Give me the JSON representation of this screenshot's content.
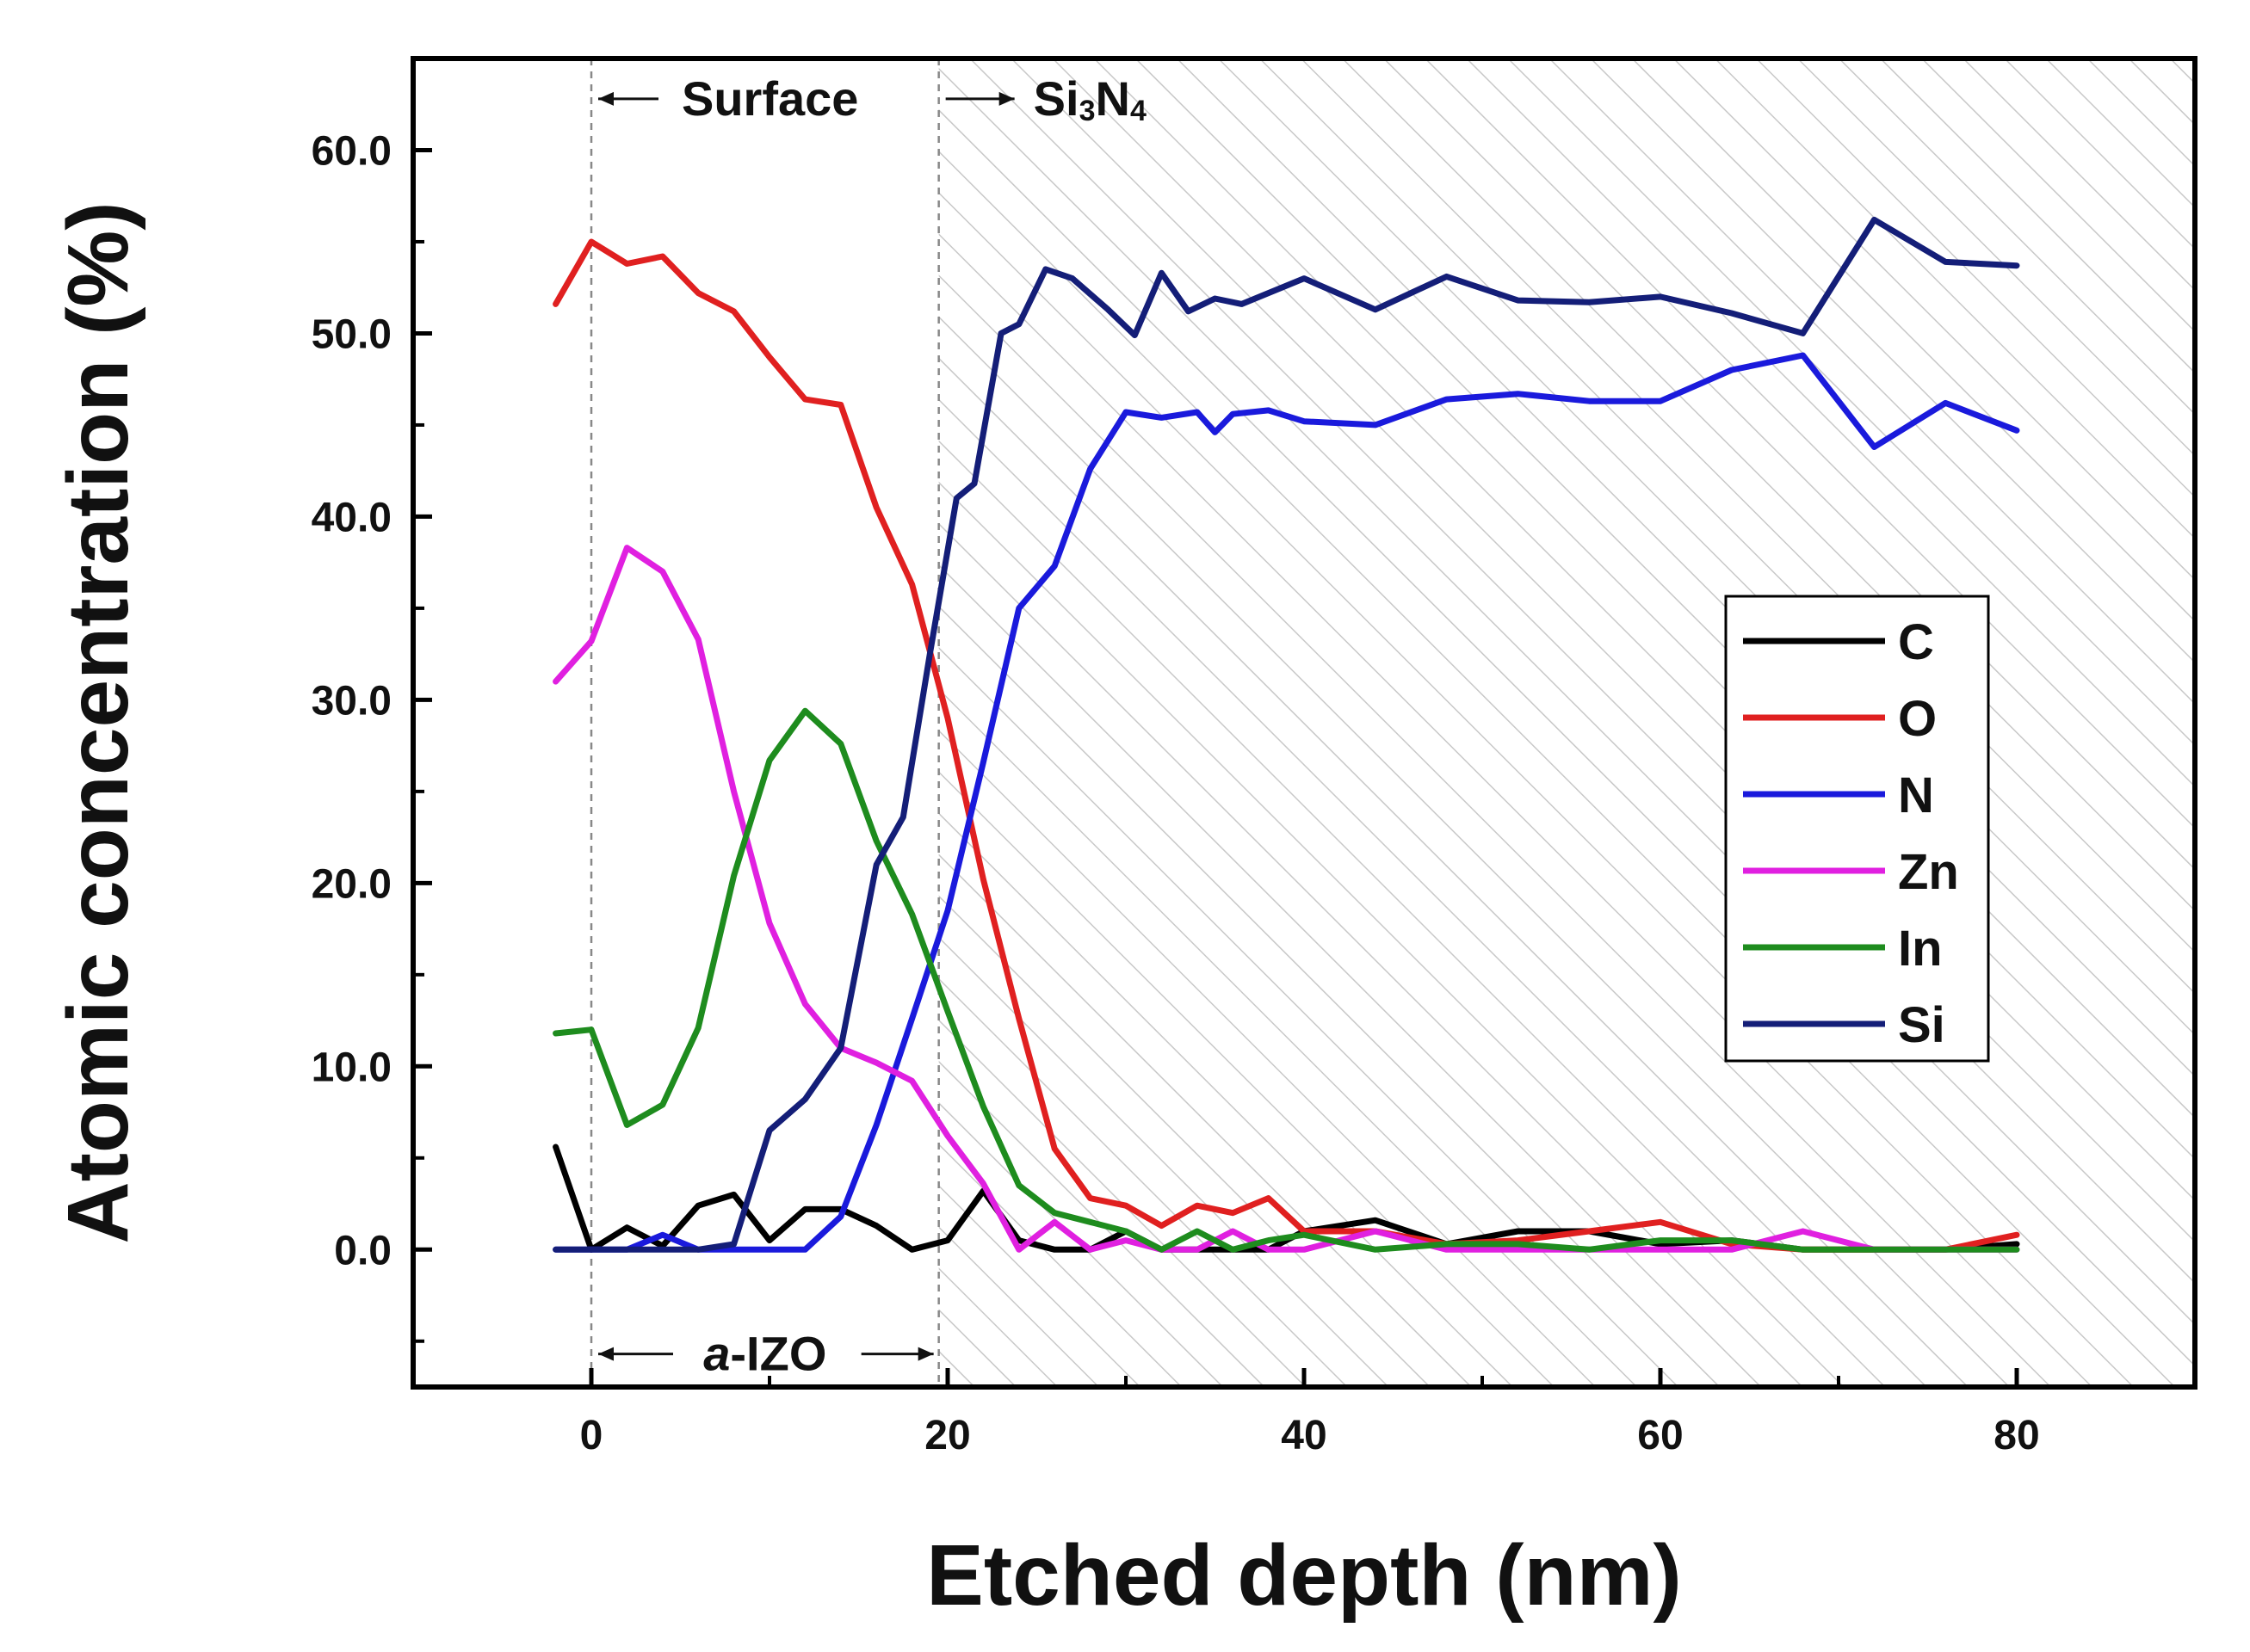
{
  "chart_data": {
    "type": "line",
    "title": "",
    "xlabel": "Etched depth (nm)",
    "ylabel": "Atomic concentration (%)",
    "xlim": [
      -10,
      90
    ],
    "ylim": [
      -7.5,
      65
    ],
    "xticks": [
      0,
      20,
      40,
      60,
      80
    ],
    "xtick_labels": [
      "0",
      "20",
      "40",
      "60",
      "80"
    ],
    "yticks": [
      0,
      10,
      20,
      30,
      40,
      50,
      60
    ],
    "ytick_labels": [
      "0.0",
      "10.0",
      "20.0",
      "30.0",
      "40.0",
      "50.0",
      "60.0"
    ],
    "grid": false,
    "legend_position": "center-right",
    "annotations": {
      "surface": "Surface",
      "si3n4_base": "Si",
      "si3n4_sub1": "3",
      "si3n4_mid": "N",
      "si3n4_sub2": "4",
      "aizo_italic": "a",
      "aizo_rest": "-IZO",
      "boundary_x": [
        0,
        19.5
      ],
      "hatched_region_start": 19.5
    },
    "series": [
      {
        "name": "C",
        "color": "#000000",
        "x": [
          -2,
          0,
          2,
          4,
          6,
          8,
          10,
          12,
          14,
          16,
          18,
          20,
          22,
          24,
          26,
          28,
          30,
          32,
          34,
          36,
          38,
          40,
          44,
          48,
          52,
          56,
          60,
          64,
          68,
          72,
          76,
          80
        ],
        "y": [
          5.6,
          0,
          1.2,
          0.2,
          2.4,
          3.0,
          0.5,
          2.2,
          2.2,
          1.3,
          0,
          0.5,
          3.2,
          0.5,
          0,
          0,
          1.0,
          0,
          0,
          0,
          0,
          1.0,
          1.6,
          0.3,
          1.0,
          1.0,
          0.3,
          0.5,
          0,
          0,
          0,
          0.3
        ]
      },
      {
        "name": "O",
        "color": "#e02020",
        "x": [
          -2,
          0,
          2,
          4,
          6,
          8,
          10,
          12,
          14,
          16,
          18,
          20,
          22,
          24,
          26,
          28,
          30,
          32,
          34,
          36,
          38,
          40,
          44,
          48,
          52,
          56,
          60,
          64,
          68,
          72,
          76,
          80
        ],
        "y": [
          51.6,
          55.0,
          53.8,
          54.2,
          52.2,
          51.2,
          48.7,
          46.4,
          46.1,
          40.5,
          36.3,
          29.0,
          20.2,
          12.6,
          5.5,
          2.8,
          2.4,
          1.3,
          2.4,
          2.0,
          2.8,
          1.0,
          1.0,
          0.3,
          0.5,
          1.0,
          1.5,
          0.3,
          0,
          0,
          0,
          0.8
        ]
      },
      {
        "name": "N",
        "color": "#1a1adc",
        "x": [
          -2,
          0,
          2,
          4,
          6,
          8,
          10,
          12,
          14,
          16,
          18,
          20,
          22,
          24,
          26,
          28,
          30,
          32,
          34,
          35,
          36,
          38,
          40,
          44,
          48,
          52,
          56,
          60,
          64,
          68,
          72,
          76,
          80
        ],
        "y": [
          0,
          0,
          0,
          0.8,
          0,
          0,
          0,
          0,
          1.8,
          6.8,
          12.6,
          18.5,
          26.6,
          35.0,
          37.3,
          42.6,
          45.7,
          45.4,
          45.7,
          44.6,
          45.6,
          45.8,
          45.2,
          45.0,
          46.4,
          46.7,
          46.3,
          46.3,
          48.0,
          48.8,
          43.8,
          46.2,
          44.7
        ]
      },
      {
        "name": "Zn",
        "color": "#e020e0",
        "x": [
          -2,
          0,
          2,
          4,
          6,
          8,
          10,
          12,
          14,
          16,
          18,
          20,
          22,
          24,
          26,
          28,
          30,
          32,
          34,
          36,
          38,
          40,
          44,
          48,
          52,
          56,
          60,
          64,
          68,
          72,
          76,
          80
        ],
        "y": [
          31.0,
          33.2,
          38.3,
          37.0,
          33.3,
          25.0,
          17.8,
          13.4,
          11.0,
          10.2,
          9.2,
          6.2,
          3.6,
          0,
          1.5,
          0,
          0.5,
          0,
          0,
          1.0,
          0,
          0,
          1.0,
          0,
          0,
          0,
          0,
          0,
          1.0,
          0,
          0,
          0
        ]
      },
      {
        "name": "In",
        "color": "#1e8c1e",
        "x": [
          -2,
          0,
          2,
          4,
          6,
          8,
          10,
          12,
          14,
          16,
          18,
          20,
          22,
          24,
          26,
          28,
          30,
          32,
          34,
          36,
          38,
          40,
          44,
          48,
          52,
          56,
          60,
          64,
          68,
          72,
          76,
          80
        ],
        "y": [
          11.8,
          12.0,
          6.8,
          7.9,
          12.1,
          20.4,
          26.7,
          29.4,
          27.6,
          22.3,
          18.3,
          13.0,
          7.8,
          3.5,
          2.0,
          1.5,
          1.0,
          0,
          1.0,
          0,
          0.5,
          0.8,
          0,
          0.3,
          0.3,
          0,
          0.5,
          0.5,
          0,
          0,
          0,
          0
        ]
      },
      {
        "name": "Si",
        "color": "#141e78",
        "x": [
          -2,
          0,
          2,
          4,
          6,
          8,
          10,
          12,
          14,
          16,
          17.5,
          19,
          20.5,
          21.5,
          23,
          24,
          25.5,
          27,
          29,
          30.5,
          32,
          33.5,
          35,
          36.5,
          38,
          40,
          44,
          48,
          52,
          56,
          60,
          64,
          68,
          72,
          76,
          80
        ],
        "y": [
          0,
          0,
          0,
          0,
          0,
          0.3,
          6.5,
          8.2,
          11.0,
          21.0,
          23.6,
          32.5,
          41.0,
          41.8,
          50.0,
          50.5,
          53.5,
          53.0,
          51.3,
          49.9,
          53.3,
          51.2,
          51.9,
          51.6,
          52.2,
          53.0,
          51.3,
          53.1,
          51.8,
          51.7,
          52.0,
          51.1,
          50.0,
          56.2,
          53.9,
          53.7
        ]
      }
    ]
  }
}
